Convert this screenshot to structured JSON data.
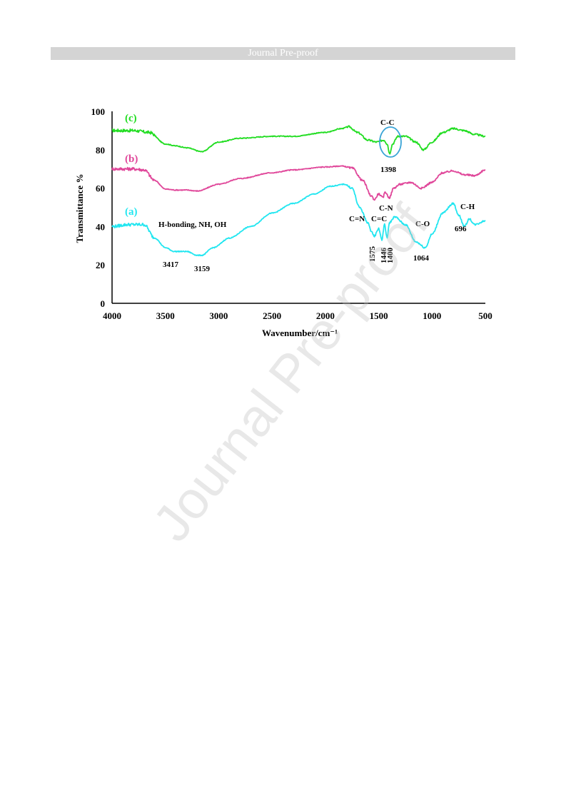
{
  "header": {
    "title": "Journal Pre-proof"
  },
  "watermark": {
    "text": "Journal Pre-proof"
  },
  "chart_data": {
    "type": "line",
    "xlabel": "Wavenumber/cm⁻¹",
    "ylabel": "Transmittance %",
    "xlim": [
      4000,
      500
    ],
    "ylim": [
      0,
      100
    ],
    "x_ticks": [
      4000,
      3500,
      3000,
      2500,
      2000,
      1500,
      1000,
      500
    ],
    "y_ticks": [
      0,
      20,
      40,
      60,
      80,
      100
    ],
    "grid": false,
    "series": [
      {
        "name": "(c)",
        "color": "#22dd22",
        "x": [
          4000,
          3800,
          3650,
          3500,
          3400,
          3300,
          3160,
          3000,
          2800,
          2500,
          2300,
          2000,
          1850,
          1780,
          1700,
          1600,
          1520,
          1450,
          1420,
          1398,
          1370,
          1320,
          1250,
          1150,
          1080,
          1000,
          900,
          800,
          700,
          600,
          500
        ],
        "y": [
          90,
          90,
          89,
          83,
          82,
          81,
          79,
          84,
          86,
          87,
          87,
          89,
          91,
          92,
          89,
          85,
          84,
          85,
          83,
          78,
          83,
          87,
          87,
          84,
          80,
          84,
          89,
          91,
          90,
          88,
          87
        ]
      },
      {
        "name": "(b)",
        "color": "#e0479a",
        "x": [
          4000,
          3800,
          3700,
          3600,
          3500,
          3400,
          3300,
          3200,
          3000,
          2800,
          2500,
          2300,
          2000,
          1850,
          1750,
          1650,
          1570,
          1540,
          1500,
          1460,
          1440,
          1400,
          1360,
          1300,
          1200,
          1100,
          1000,
          900,
          800,
          700,
          600,
          500
        ],
        "y": [
          70,
          70,
          69.5,
          64,
          59.5,
          59,
          59,
          58.5,
          62,
          65,
          68,
          69.5,
          71,
          71.5,
          70.5,
          64,
          56,
          54,
          57,
          55,
          58,
          55,
          60,
          62,
          63,
          60,
          63,
          68,
          69,
          67,
          66.5,
          69.5
        ]
      },
      {
        "name": "(a)",
        "color": "#22e6f0",
        "x": [
          4000,
          3850,
          3700,
          3600,
          3500,
          3417,
          3300,
          3200,
          3159,
          3050,
          2900,
          2700,
          2500,
          2300,
          2100,
          1950,
          1820,
          1750,
          1680,
          1600,
          1575,
          1540,
          1500,
          1470,
          1446,
          1420,
          1400,
          1350,
          1250,
          1150,
          1064,
          1000,
          900,
          800,
          750,
          696,
          650,
          600,
          500
        ],
        "y": [
          40,
          41,
          41,
          34,
          29,
          27,
          27,
          25,
          25,
          29,
          34,
          40,
          47,
          52,
          57,
          61,
          62,
          60,
          50,
          42,
          38,
          35,
          39,
          33,
          41,
          34,
          42,
          45,
          41,
          32,
          29,
          36,
          47,
          52,
          46,
          40,
          44,
          41,
          43
        ]
      }
    ],
    "annotations": {
      "series_labels": [
        "(c)",
        "(b)",
        "(a)"
      ],
      "group_a": "H-bonding, NH, OH",
      "cc_label": "C-C",
      "peak_1398": "1398",
      "cn_label": "C=N",
      "cc2_label": "C=C",
      "cn2_label": "C-N",
      "co_label": "C-O",
      "ch_label": "C-H",
      "peak_3417": "3417",
      "peak_3159": "3159",
      "peak_1575": "1575",
      "peak_1446": "1446",
      "peak_1400": "1400",
      "peak_1064": "1064",
      "peak_696": "696"
    }
  }
}
